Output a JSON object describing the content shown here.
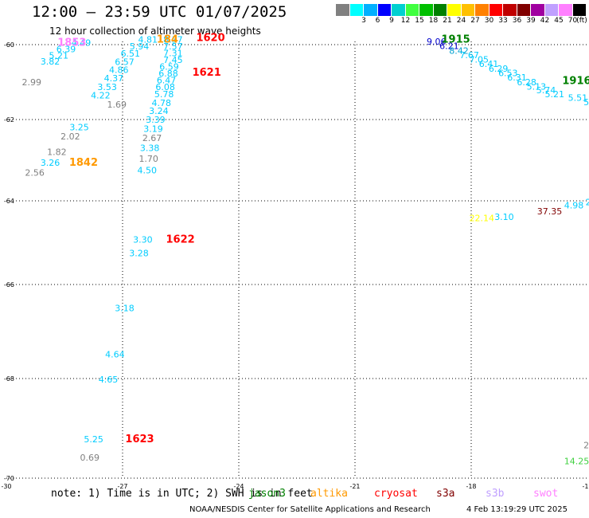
{
  "header": {
    "title": "12:00 – 23:59 UTC 01/07/2025",
    "subtitle": "12 hour collection of altimeter wave heights"
  },
  "legend": {
    "unit_label": "(ft)",
    "swatches": [
      {
        "color": "#808080",
        "label": ""
      },
      {
        "color": "#00ffff",
        "label": "3"
      },
      {
        "color": "#00b0ff",
        "label": "6"
      },
      {
        "color": "#0000ff",
        "label": "9"
      },
      {
        "color": "#00d0d0",
        "label": "12"
      },
      {
        "color": "#40ff40",
        "label": "15"
      },
      {
        "color": "#00c000",
        "label": "18"
      },
      {
        "color": "#008000",
        "label": "21"
      },
      {
        "color": "#ffff00",
        "label": "24"
      },
      {
        "color": "#ffc000",
        "label": "27"
      },
      {
        "color": "#ff8000",
        "label": "30"
      },
      {
        "color": "#ff0000",
        "label": "33"
      },
      {
        "color": "#c00000",
        "label": "36"
      },
      {
        "color": "#800000",
        "label": "39"
      },
      {
        "color": "#a000a0",
        "label": "42"
      },
      {
        "color": "#c0a0ff",
        "label": "45"
      },
      {
        "color": "#ff80ff",
        "label": "70"
      },
      {
        "color": "#000000",
        "label": ""
      }
    ]
  },
  "map": {
    "lon_range": [
      -30,
      -15
    ],
    "lat_range": [
      -70,
      -60
    ],
    "lon_ticks": [
      {
        "lon": -30,
        "label": "-30"
      },
      {
        "lon": -27,
        "label": "-27"
      },
      {
        "lon": -24,
        "label": "-24"
      },
      {
        "lon": -21,
        "label": "-21"
      },
      {
        "lon": -18,
        "label": "-18"
      },
      {
        "lon": -15,
        "label": "-15"
      }
    ],
    "lat_ticks": [
      {
        "lat": -60,
        "label": "-60"
      },
      {
        "lat": -62,
        "label": "-62"
      },
      {
        "lat": -64,
        "label": "-64"
      },
      {
        "lat": -66,
        "label": "-66"
      },
      {
        "lat": -68,
        "label": "-68"
      },
      {
        "lat": -70,
        "label": "-70"
      }
    ],
    "observations": [
      {
        "lon": -28.32,
        "lat": -60.03,
        "text": "4.49",
        "color": "#00ccff"
      },
      {
        "lon": -28.71,
        "lat": -60.2,
        "text": "6.39",
        "color": "#00ccff"
      },
      {
        "lon": -28.9,
        "lat": -60.37,
        "text": "5.21",
        "color": "#00ccff"
      },
      {
        "lon": -29.12,
        "lat": -60.53,
        "text": "3.82",
        "color": "#00ccff"
      },
      {
        "lon": -29.6,
        "lat": -61.09,
        "text": "2.99",
        "color": "#808080"
      },
      {
        "lon": -27.4,
        "lat": -61.68,
        "text": "1.69",
        "color": "#808080"
      },
      {
        "lon": -27.82,
        "lat": -61.44,
        "text": "4.22",
        "color": "#00ccff"
      },
      {
        "lon": -27.65,
        "lat": -61.21,
        "text": "3.53",
        "color": "#00ccff"
      },
      {
        "lon": -27.48,
        "lat": -60.98,
        "text": "4.37",
        "color": "#00ccff"
      },
      {
        "lon": -27.35,
        "lat": -60.76,
        "text": "4.86",
        "color": "#00ccff"
      },
      {
        "lon": -27.2,
        "lat": -60.54,
        "text": "6.57",
        "color": "#00ccff"
      },
      {
        "lon": -27.05,
        "lat": -60.32,
        "text": "6.51",
        "color": "#00ccff"
      },
      {
        "lon": -26.82,
        "lat": -60.13,
        "text": "5.94",
        "color": "#00ccff"
      },
      {
        "lon": -26.6,
        "lat": -59.95,
        "text": "4.81",
        "color": "#00ccff"
      },
      {
        "lon": -25.95,
        "lat": -59.95,
        "text": "8.37",
        "color": "#00ccff"
      },
      {
        "lon": -25.95,
        "lat": -60.13,
        "text": "7.57",
        "color": "#00ccff"
      },
      {
        "lon": -25.95,
        "lat": -60.31,
        "text": "7.31",
        "color": "#00ccff"
      },
      {
        "lon": -25.95,
        "lat": -60.49,
        "text": "7.45",
        "color": "#00ccff"
      },
      {
        "lon": -26.05,
        "lat": -60.67,
        "text": "6.59",
        "color": "#00ccff"
      },
      {
        "lon": -26.07,
        "lat": -60.85,
        "text": "6.88",
        "color": "#00ccff"
      },
      {
        "lon": -26.12,
        "lat": -61.03,
        "text": "6.47",
        "color": "#00ccff"
      },
      {
        "lon": -26.15,
        "lat": -61.21,
        "text": "6.08",
        "color": "#00ccff"
      },
      {
        "lon": -26.18,
        "lat": -61.4,
        "text": "5.78",
        "color": "#00ccff"
      },
      {
        "lon": -26.25,
        "lat": -61.64,
        "text": "4.78",
        "color": "#00ccff"
      },
      {
        "lon": -26.32,
        "lat": -61.85,
        "text": "3.24",
        "color": "#00ccff"
      },
      {
        "lon": -26.4,
        "lat": -62.08,
        "text": "3.39",
        "color": "#00ccff"
      },
      {
        "lon": -26.46,
        "lat": -62.3,
        "text": "3.19",
        "color": "#00ccff"
      },
      {
        "lon": -26.49,
        "lat": -62.53,
        "text": "2.67",
        "color": "#808080"
      },
      {
        "lon": -26.55,
        "lat": -62.77,
        "text": "3.38",
        "color": "#00ccff"
      },
      {
        "lon": -26.58,
        "lat": -63.04,
        "text": "1.70",
        "color": "#808080"
      },
      {
        "lon": -26.62,
        "lat": -63.32,
        "text": "4.50",
        "color": "#00ccff"
      },
      {
        "lon": -28.37,
        "lat": -62.26,
        "text": "3.25",
        "color": "#00ccff"
      },
      {
        "lon": -28.6,
        "lat": -62.49,
        "text": "2.02",
        "color": "#808080"
      },
      {
        "lon": -28.95,
        "lat": -62.87,
        "text": "1.82",
        "color": "#808080"
      },
      {
        "lon": -29.12,
        "lat": -63.14,
        "text": "3.26",
        "color": "#00ccff"
      },
      {
        "lon": -29.52,
        "lat": -63.38,
        "text": "2.56",
        "color": "#808080"
      },
      {
        "lon": -26.73,
        "lat": -65.0,
        "text": "3.30",
        "color": "#00ccff"
      },
      {
        "lon": -26.83,
        "lat": -65.32,
        "text": "3.28",
        "color": "#00ccff"
      },
      {
        "lon": -27.2,
        "lat": -66.57,
        "text": "3.18",
        "color": "#00ccff"
      },
      {
        "lon": -27.45,
        "lat": -67.55,
        "text": "4.64",
        "color": "#00ccff"
      },
      {
        "lon": -27.62,
        "lat": -68.08,
        "text": "4.65",
        "color": "#00ccff"
      },
      {
        "lon": -28.0,
        "lat": -69.28,
        "text": "5.25",
        "color": "#00ccff"
      },
      {
        "lon": -28.1,
        "lat": -69.65,
        "text": "0.69",
        "color": "#808080"
      },
      {
        "lon": -19.15,
        "lat": -60.0,
        "text": "9.06",
        "color": "#0000cc"
      },
      {
        "lon": -18.82,
        "lat": -60.12,
        "text": "6.21",
        "color": "#0000cc"
      },
      {
        "lon": -18.57,
        "lat": -60.24,
        "text": "8.42",
        "color": "#00a0d0"
      },
      {
        "lon": -18.3,
        "lat": -60.36,
        "text": "7.67",
        "color": "#00ccff"
      },
      {
        "lon": -18.05,
        "lat": -60.48,
        "text": "7.05",
        "color": "#00ccff"
      },
      {
        "lon": -17.8,
        "lat": -60.6,
        "text": "6.41",
        "color": "#00ccff"
      },
      {
        "lon": -17.55,
        "lat": -60.72,
        "text": "6.29",
        "color": "#00ccff"
      },
      {
        "lon": -17.3,
        "lat": -60.84,
        "text": "6.53",
        "color": "#00ccff"
      },
      {
        "lon": -17.07,
        "lat": -60.96,
        "text": "6.31",
        "color": "#00ccff"
      },
      {
        "lon": -16.82,
        "lat": -61.08,
        "text": "6.28",
        "color": "#00ccff"
      },
      {
        "lon": -16.57,
        "lat": -61.2,
        "text": "5.13",
        "color": "#00ccff"
      },
      {
        "lon": -16.32,
        "lat": -61.3,
        "text": "5.74",
        "color": "#00ccff"
      },
      {
        "lon": -16.1,
        "lat": -61.4,
        "text": "5.21",
        "color": "#00ccff"
      },
      {
        "lon": -15.5,
        "lat": -61.5,
        "text": "5.51",
        "color": "#00ccff"
      },
      {
        "lon": -15.1,
        "lat": -61.62,
        "text": "5.",
        "color": "#00ccff"
      },
      {
        "lon": -15.6,
        "lat": -64.18,
        "text": "4.98",
        "color": "#00ccff"
      },
      {
        "lon": -15.05,
        "lat": -64.1,
        "text": "2",
        "color": "#00ccff"
      },
      {
        "lon": -16.3,
        "lat": -64.32,
        "text": "37.35",
        "color": "#800000"
      },
      {
        "lon": -17.4,
        "lat": -64.46,
        "text": "3.10",
        "color": "#00ccff"
      },
      {
        "lon": -18.05,
        "lat": -64.49,
        "text": "22.14",
        "color": "#ffff00"
      },
      {
        "lon": -15.1,
        "lat": -69.4,
        "text": "2",
        "color": "#808080"
      },
      {
        "lon": -15.6,
        "lat": -69.72,
        "text": "14.25",
        "color": "#40d040"
      }
    ],
    "passes": [
      {
        "lon": -28.68,
        "lat": -60.03,
        "text": "1853",
        "color": "#ff80ff"
      },
      {
        "lon": -26.12,
        "lat": -59.95,
        "text": "184",
        "color": "#ff9900"
      },
      {
        "lon": -25.1,
        "lat": -59.9,
        "text": "1620",
        "color": "#ff0000"
      },
      {
        "lon": -25.2,
        "lat": -60.83,
        "text": "1621",
        "color": "#ff0000"
      },
      {
        "lon": -28.38,
        "lat": -63.14,
        "text": "1842",
        "color": "#ff9900"
      },
      {
        "lon": -25.88,
        "lat": -65.0,
        "text": "1622",
        "color": "#ff0000"
      },
      {
        "lon": -26.93,
        "lat": -69.28,
        "text": "1623",
        "color": "#ff0000"
      },
      {
        "lon": -18.77,
        "lat": -59.95,
        "text": "1915",
        "color": "#008000"
      },
      {
        "lon": -15.65,
        "lat": -61.05,
        "text": "1916",
        "color": "#008000"
      }
    ]
  },
  "bottom": {
    "note": "note: 1) Time is in UTC; 2) SWH is in feet",
    "satellites": [
      {
        "name": "jason3",
        "color": "#008000"
      },
      {
        "name": "altika",
        "color": "#ff9900"
      },
      {
        "name": "cryosat",
        "color": "#ff0000"
      },
      {
        "name": "s3a",
        "color": "#800000"
      },
      {
        "name": "s3b",
        "color": "#c0a0ff"
      },
      {
        "name": "swot",
        "color": "#ff80ff"
      }
    ],
    "footer": "NOAA/NESDIS Center for Satellite Applications and Research",
    "timestamp": "4 Feb 13:19:29 UTC 2025"
  }
}
